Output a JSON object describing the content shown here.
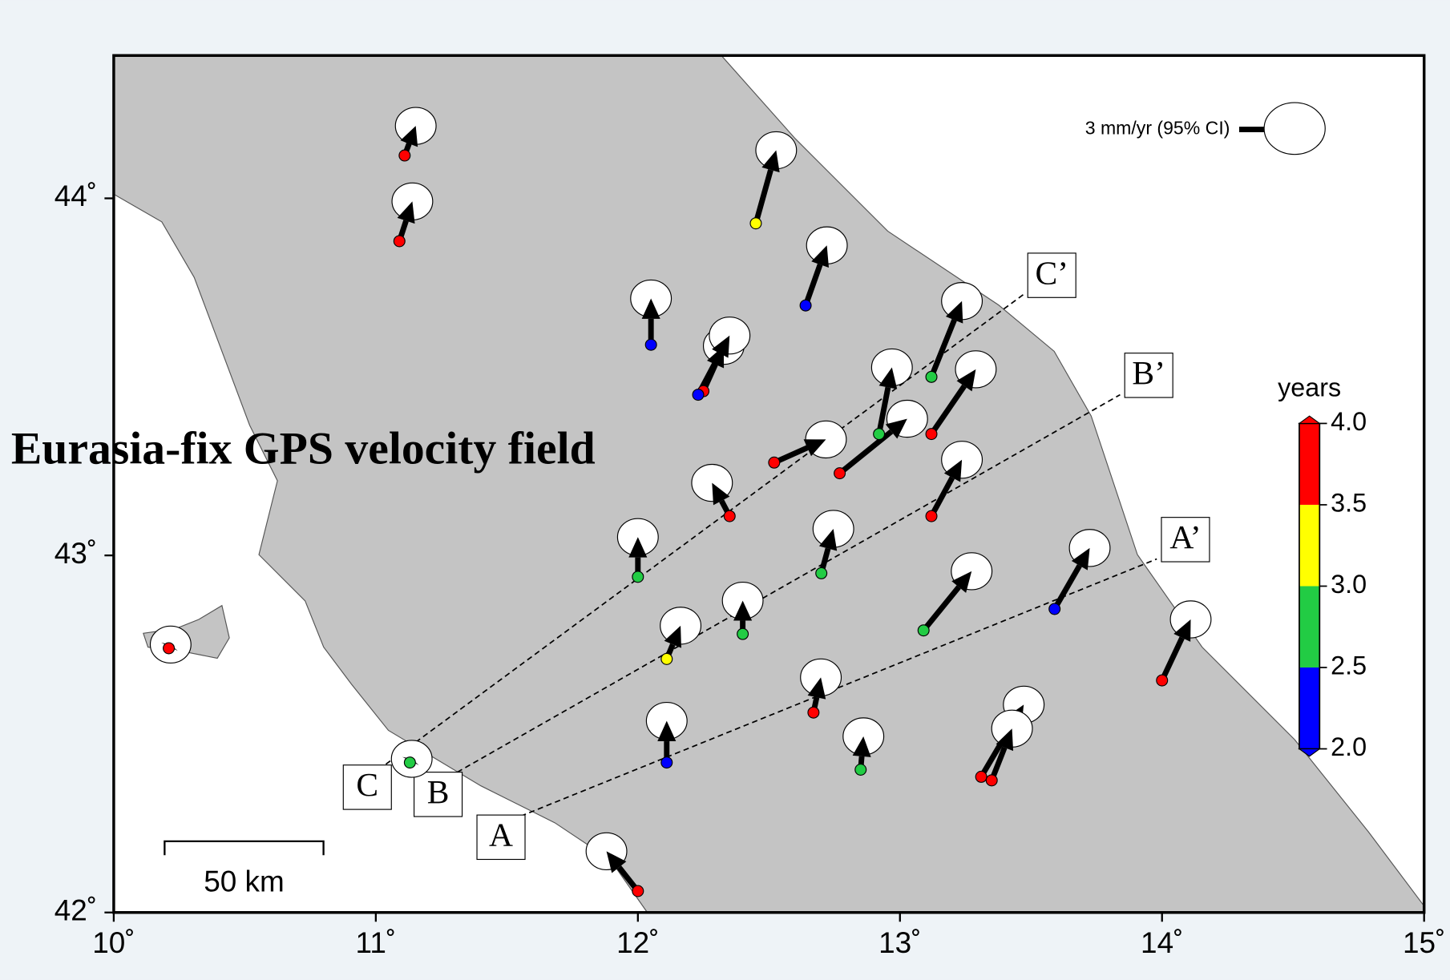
{
  "chart_data": {
    "type": "velocity-map",
    "title": "Eurasia-fix GPS velocity field",
    "xlim": [
      10,
      15
    ],
    "ylim": [
      42,
      44.4
    ],
    "xticks": [
      {
        "value": 10,
        "label": "10˚"
      },
      {
        "value": 11,
        "label": "11˚"
      },
      {
        "value": 12,
        "label": "12˚"
      },
      {
        "value": 13,
        "label": "13˚"
      },
      {
        "value": 14,
        "label": "14˚"
      },
      {
        "value": 15,
        "label": "15˚"
      }
    ],
    "yticks": [
      {
        "value": 42,
        "label": "42˚"
      },
      {
        "value": 43,
        "label": "43˚"
      },
      {
        "value": 44,
        "label": "44˚"
      }
    ],
    "reference": {
      "value": 3,
      "label": "3 mm/yr (95% CI)"
    },
    "scale_bar": {
      "value": 50,
      "label": "50 km"
    },
    "colorbar": {
      "title": "years",
      "range": [
        2,
        4
      ],
      "colors": [
        "#0000ff",
        "#22cc44",
        "#ffff00",
        "#ff0000"
      ],
      "ticks": [
        {
          "value": 2,
          "label": "2.0"
        },
        {
          "value": 2.5,
          "label": "2.5"
        },
        {
          "value": 3,
          "label": "3.0"
        },
        {
          "value": 3.5,
          "label": "3.5"
        },
        {
          "value": 4,
          "label": "4.0"
        }
      ]
    },
    "stations": [
      {
        "lon": 11.11,
        "lat": 44.12,
        "ve": 0.6,
        "vn": 1.6,
        "color": "#ff0000"
      },
      {
        "lon": 11.09,
        "lat": 43.88,
        "ve": 0.7,
        "vn": 2.15,
        "color": "#ff0000"
      },
      {
        "lon": 12.45,
        "lat": 43.93,
        "ve": 1.1,
        "vn": 3.95,
        "color": "#ffff00"
      },
      {
        "lon": 12.64,
        "lat": 43.7,
        "ve": 1.15,
        "vn": 3.25,
        "color": "#0000ff"
      },
      {
        "lon": 12.05,
        "lat": 43.59,
        "ve": 0,
        "vn": 2.5,
        "color": "#0000ff"
      },
      {
        "lon": 12.25,
        "lat": 43.46,
        "ve": 1.1,
        "vn": 2.45,
        "color": "#ff0000"
      },
      {
        "lon": 12.23,
        "lat": 43.45,
        "ve": 1.7,
        "vn": 3.2,
        "color": "#0000ff"
      },
      {
        "lon": 13.12,
        "lat": 43.5,
        "ve": 1.65,
        "vn": 4.1,
        "color": "#22cc44"
      },
      {
        "lon": 12.92,
        "lat": 43.34,
        "ve": 0.7,
        "vn": 3.6,
        "color": "#22cc44"
      },
      {
        "lon": 13.12,
        "lat": 43.34,
        "ve": 2.4,
        "vn": 3.5,
        "color": "#ff0000"
      },
      {
        "lon": 12.52,
        "lat": 43.26,
        "ve": 2.8,
        "vn": 1.25,
        "color": "#ff0000"
      },
      {
        "lon": 12.77,
        "lat": 43.23,
        "ve": 3.65,
        "vn": 2.95,
        "color": "#ff0000"
      },
      {
        "lon": 12.35,
        "lat": 43.11,
        "ve": -0.95,
        "vn": 1.8,
        "color": "#ff0000"
      },
      {
        "lon": 13.12,
        "lat": 43.11,
        "ve": 1.65,
        "vn": 3.05,
        "color": "#ff0000"
      },
      {
        "lon": 12.0,
        "lat": 42.94,
        "ve": 0,
        "vn": 2.15,
        "color": "#22cc44"
      },
      {
        "lon": 12.7,
        "lat": 42.95,
        "ve": 0.65,
        "vn": 2.4,
        "color": "#22cc44"
      },
      {
        "lon": 12.4,
        "lat": 42.78,
        "ve": 0,
        "vn": 1.8,
        "color": "#22cc44"
      },
      {
        "lon": 12.11,
        "lat": 42.71,
        "ve": 0.75,
        "vn": 1.8,
        "color": "#ffff00"
      },
      {
        "lon": 13.09,
        "lat": 42.79,
        "ve": 2.6,
        "vn": 3.2,
        "color": "#22cc44"
      },
      {
        "lon": 13.59,
        "lat": 42.85,
        "ve": 1.9,
        "vn": 3.3,
        "color": "#0000ff"
      },
      {
        "lon": 14.0,
        "lat": 42.65,
        "ve": 1.55,
        "vn": 3.3,
        "color": "#ff0000"
      },
      {
        "lon": 12.67,
        "lat": 42.56,
        "ve": 0.4,
        "vn": 1.9,
        "color": "#ff0000"
      },
      {
        "lon": 12.11,
        "lat": 42.42,
        "ve": 0,
        "vn": 2.25,
        "color": "#0000ff"
      },
      {
        "lon": 12.85,
        "lat": 42.4,
        "ve": 0.15,
        "vn": 1.8,
        "color": "#22cc44"
      },
      {
        "lon": 13.31,
        "lat": 42.38,
        "ve": 2.3,
        "vn": 3.9,
        "color": "#ff0000"
      },
      {
        "lon": 13.35,
        "lat": 42.37,
        "ve": 1.1,
        "vn": 2.8,
        "color": "#ff0000"
      },
      {
        "lon": 11.13,
        "lat": 42.42,
        "ve": 0.1,
        "vn": 0.2,
        "color": "#22cc44"
      },
      {
        "lon": 10.21,
        "lat": 42.74,
        "ve": 0.1,
        "vn": 0.2,
        "color": "#ff0000"
      },
      {
        "lon": 12.0,
        "lat": 42.06,
        "ve": -1.7,
        "vn": 2.15,
        "color": "#ff0000"
      }
    ],
    "profiles": [
      {
        "start_label": "A",
        "end_label": "A’",
        "start": [
          11.52,
          42.26
        ],
        "end": [
          13.98,
          42.99
        ]
      },
      {
        "start_label": "B",
        "end_label": "B’",
        "start": [
          11.28,
          42.38
        ],
        "end": [
          13.84,
          43.45
        ]
      },
      {
        "start_label": "C",
        "end_label": "C’",
        "start": [
          11.01,
          42.4
        ],
        "end": [
          13.47,
          43.73
        ]
      }
    ]
  }
}
